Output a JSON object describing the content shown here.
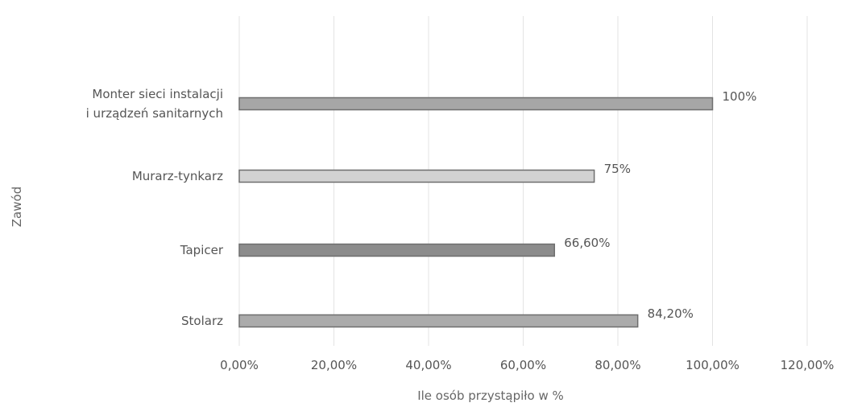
{
  "chart_data": {
    "type": "bar",
    "orientation": "horizontal",
    "title": "",
    "xlabel": "Ile osób przystąpiło w %",
    "ylabel": "Zawód",
    "xlim": [
      0,
      120
    ],
    "x_ticks": [
      0,
      20,
      40,
      60,
      80,
      100,
      120
    ],
    "x_tick_labels": [
      "0,00%",
      "20,00%",
      "40,00%",
      "60,00%",
      "80,00%",
      "100,00%",
      "120,00%"
    ],
    "grid": "vertical",
    "legend": "none",
    "categories": [
      {
        "lines": [
          "Monter sieci instalacji",
          "i urządzeń sanitarnych"
        ]
      },
      {
        "lines": [
          "Murarz-tynkarz"
        ]
      },
      {
        "lines": [
          "Tapicer"
        ]
      },
      {
        "lines": [
          "Stolarz"
        ]
      }
    ],
    "values": [
      100,
      75,
      66.6,
      84.2
    ],
    "data_labels": [
      "100%",
      "75%",
      "66,60%",
      "84,20%"
    ],
    "bar_colors": [
      "#a6a6a6",
      "#d2d2d2",
      "#8c8c8c",
      "#ababab"
    ]
  }
}
